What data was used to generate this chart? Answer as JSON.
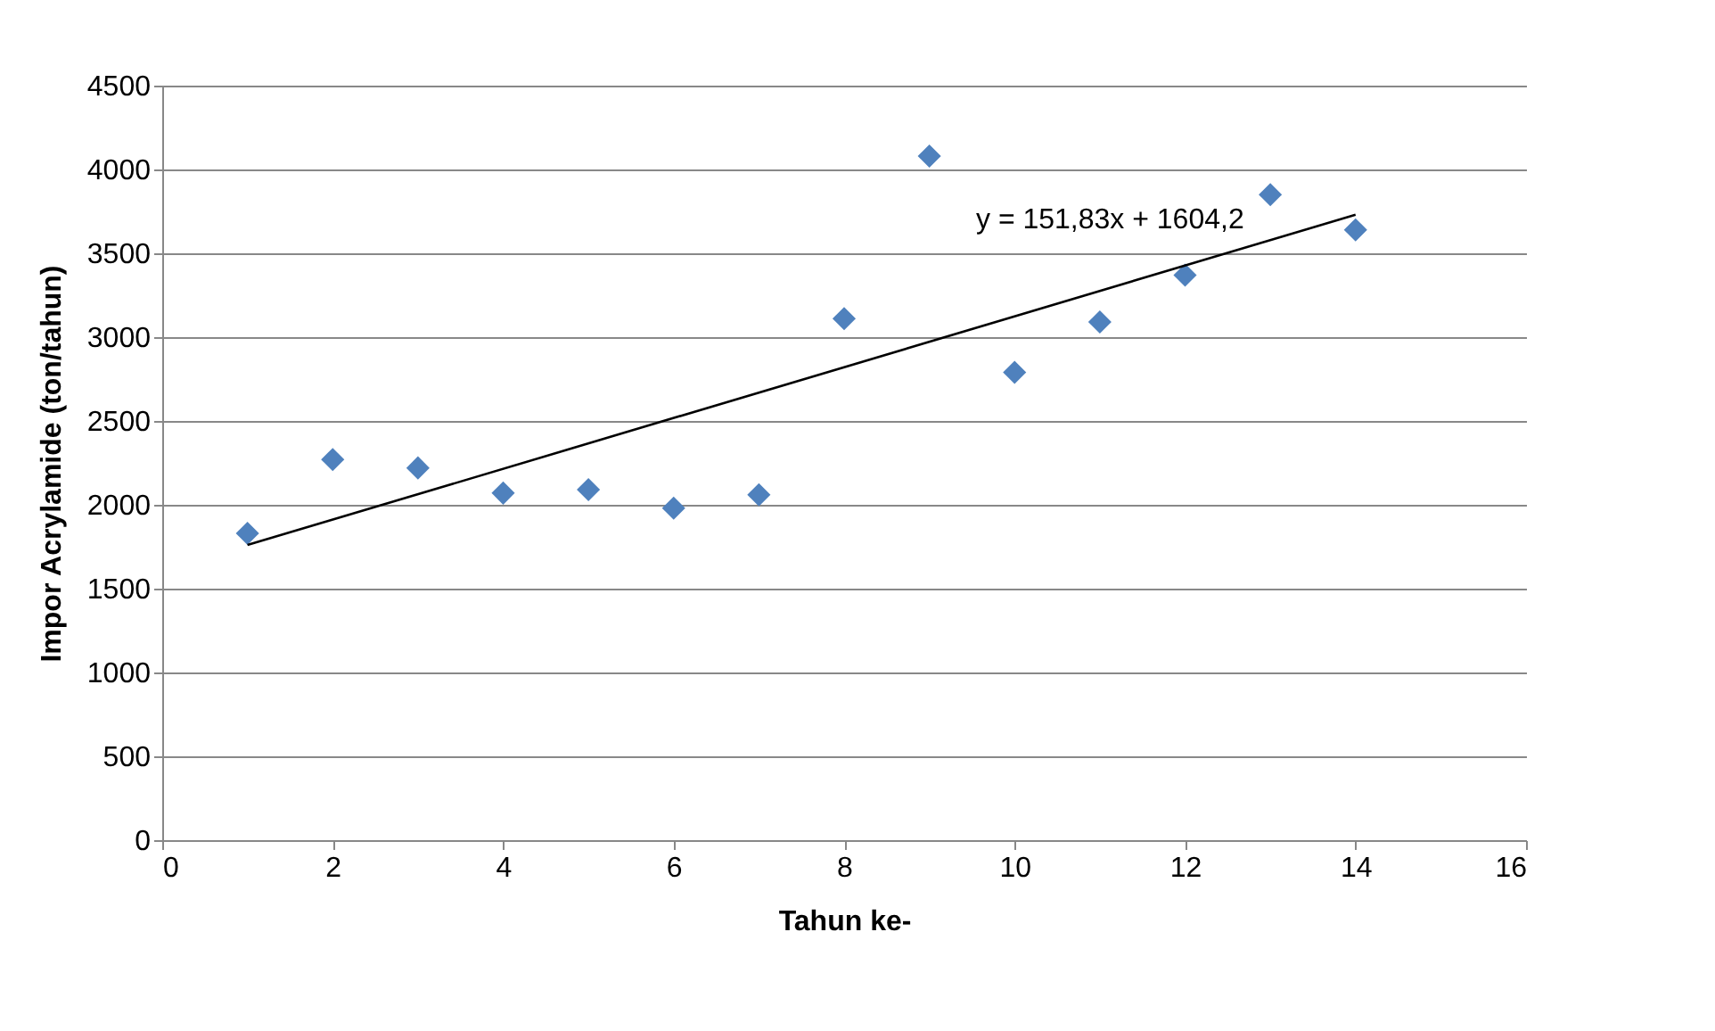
{
  "chart_data": {
    "type": "scatter",
    "xlabel": "Tahun ke-",
    "ylabel": "Impor Acrylamide (ton/tahun)",
    "xlim": [
      0,
      16
    ],
    "xticks": [
      0,
      2,
      4,
      6,
      8,
      10,
      12,
      14,
      16
    ],
    "ylim": [
      0,
      4500
    ],
    "yticks": [
      0,
      500,
      1000,
      1500,
      2000,
      2500,
      3000,
      3500,
      4000,
      4500
    ],
    "grid": "y",
    "series": [
      {
        "color": "#4f81bd",
        "marker": "diamond",
        "x": [
          1,
          2,
          3,
          4,
          5,
          6,
          7,
          8,
          9,
          10,
          11,
          12,
          13,
          14
        ],
        "values": [
          1830,
          2270,
          2220,
          2070,
          2090,
          1980,
          2060,
          3110,
          4080,
          2790,
          3090,
          3370,
          3850,
          3640
        ]
      },
      {
        "type": "line",
        "color": "#000000",
        "marker": "none",
        "x": [
          1,
          14
        ],
        "values": [
          1760,
          3730
        ]
      }
    ],
    "annotations": [
      "y = 151,83x + 1604,2"
    ]
  }
}
